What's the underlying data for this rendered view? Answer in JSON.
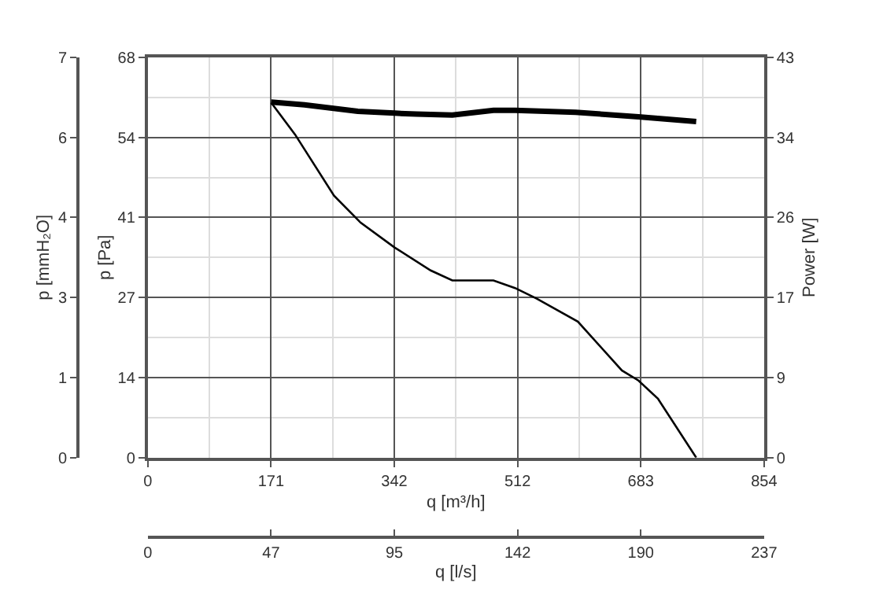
{
  "chart_data": {
    "type": "line",
    "xlabel": "q [m³/h]",
    "x2label": "q [l/s]",
    "ylabel": "p [Pa]",
    "y2label": "Power [W]",
    "y3label": "p [mmH₂O]",
    "xlim": [
      0,
      854
    ],
    "xticks": [
      0,
      {
        "value": 170.8,
        "label": "171"
      },
      {
        "value": 341.6,
        "label": "342"
      },
      {
        "value": 512.4,
        "label": "512"
      },
      {
        "value": 683.2,
        "label": "683"
      },
      854
    ],
    "x2lim": [
      0,
      237
    ],
    "x2ticks": [
      0,
      {
        "value": 47.4,
        "label": "47"
      },
      {
        "value": 94.8,
        "label": "95"
      },
      {
        "value": 142.2,
        "label": "142"
      },
      {
        "value": 189.6,
        "label": "190"
      },
      237
    ],
    "ylim": [
      0,
      68
    ],
    "yticks": [
      0,
      {
        "value": 13.6,
        "label": "14"
      },
      {
        "value": 27.2,
        "label": "27"
      },
      {
        "value": 40.8,
        "label": "41"
      },
      {
        "value": 54.4,
        "label": "54"
      },
      68
    ],
    "y2lim": [
      0,
      43
    ],
    "y2ticks": [
      0,
      {
        "value": 8.6,
        "label": "9"
      },
      {
        "value": 17.2,
        "label": "17"
      },
      {
        "value": 25.8,
        "label": "26"
      },
      {
        "value": 34.4,
        "label": "34"
      },
      43
    ],
    "y3lim": [
      0,
      6.93
    ],
    "y3ticks": [
      0,
      {
        "value": 1.386,
        "label": "1"
      },
      {
        "value": 2.772,
        "label": "3"
      },
      {
        "value": 4.158,
        "label": "4"
      },
      {
        "value": 5.544,
        "label": "6"
      },
      {
        "value": 6.93,
        "label": "7"
      }
    ],
    "grid": true,
    "series": [
      {
        "color": "#000000",
        "x": [
          171,
          204,
          258,
          295,
          342,
          392,
          422,
          479,
          509,
          539,
          596,
          657,
          680,
          707,
          760
        ],
        "values": [
          60.3,
          54.9,
          44.5,
          39.9,
          35.7,
          31.8,
          30.1,
          30.1,
          28.8,
          27.0,
          23.1,
          14.8,
          13.1,
          10.0,
          0
        ]
      },
      {
        "color": "#000000",
        "axis": "y2",
        "x": [
          171,
          217,
          291,
          342,
          372,
          422,
          479,
          509,
          593,
          680,
          760
        ],
        "values": [
          38.2,
          37.9,
          37.2,
          37.0,
          36.9,
          36.8,
          37.3,
          37.3,
          37.1,
          36.6,
          36.1
        ]
      }
    ]
  }
}
